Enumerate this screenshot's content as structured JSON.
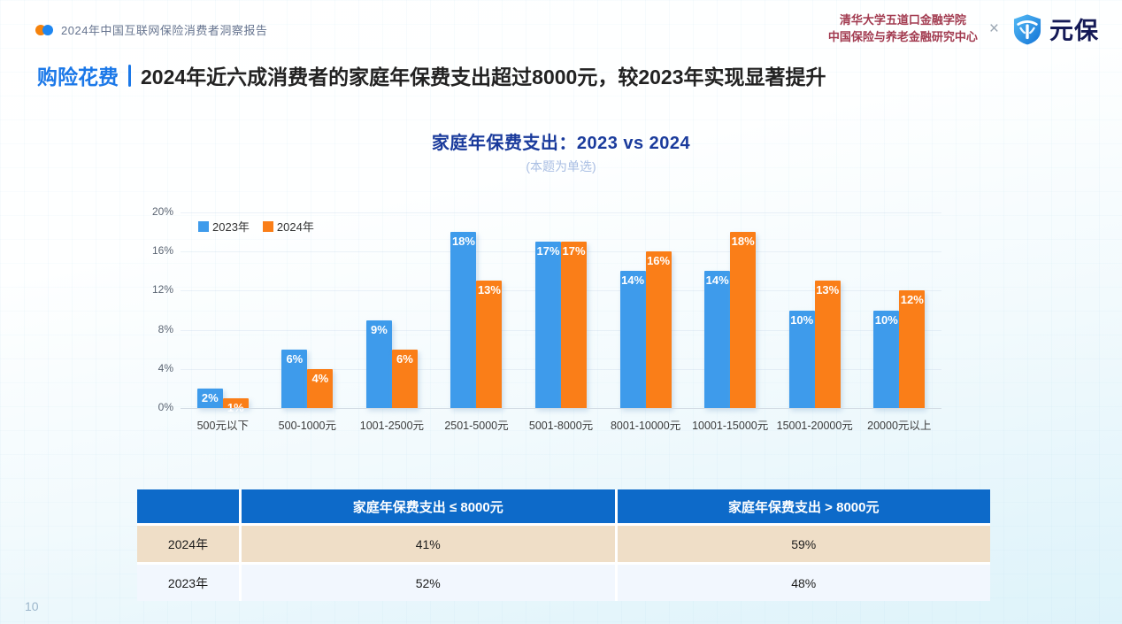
{
  "topbar": {
    "report_title": "2024年中国互联网保险消费者洞察报告",
    "org_line1": "清华大学五道口金融学院",
    "org_line2": "中国保险与养老金融研究中心",
    "cross_symbol": "×",
    "logo_text": "元保"
  },
  "headline": {
    "section": "购险花费",
    "statement": "2024年近六成消费者的家庭年保费支出超过8000元，较2023年实现显著提升"
  },
  "chart_data": {
    "type": "bar",
    "title": "家庭年保费支出：2023 vs 2024",
    "subtitle": "(本题为单选)",
    "categories": [
      "500元以下",
      "500-1000元",
      "1001-2500元",
      "2501-5000元",
      "5001-8000元",
      "8001-10000元",
      "10001-15000元",
      "15001-20000元",
      "20000元以上"
    ],
    "series": [
      {
        "name": "2023年",
        "color": "#3E9BEB",
        "values": [
          2,
          6,
          9,
          18,
          17,
          14,
          14,
          10,
          10
        ]
      },
      {
        "name": "2024年",
        "color": "#FA7E18",
        "values": [
          1,
          4,
          6,
          13,
          17,
          16,
          18,
          13,
          12
        ]
      }
    ],
    "unit": "%",
    "ylim": [
      0,
      20
    ],
    "yticks": [
      "20%",
      "16%",
      "12%",
      "8%",
      "4%",
      "0%"
    ],
    "grid": "horizontal-faint",
    "legend_position": "top-left-inside"
  },
  "table": {
    "headers": [
      "",
      "家庭年保费支出 ≤ 8000元",
      "家庭年保费支出 > 8000元"
    ],
    "rows": [
      {
        "label": "2024年",
        "values": [
          "41%",
          "59%"
        ]
      },
      {
        "label": "2023年",
        "values": [
          "52%",
          "48%"
        ]
      }
    ]
  },
  "footer": {
    "page_number": "10"
  },
  "colors": {
    "series_2023": "#3E9BEB",
    "series_2024": "#FA7E18",
    "table_header_bg": "#0D6AC9",
    "table_row_2024_bg": "#EFDEC7",
    "table_row_2023_bg": "#F2F7FE",
    "headline_accent": "#1B78E8",
    "chart_title_color": "#1A3B9C",
    "org_text_color": "#A23B50"
  }
}
